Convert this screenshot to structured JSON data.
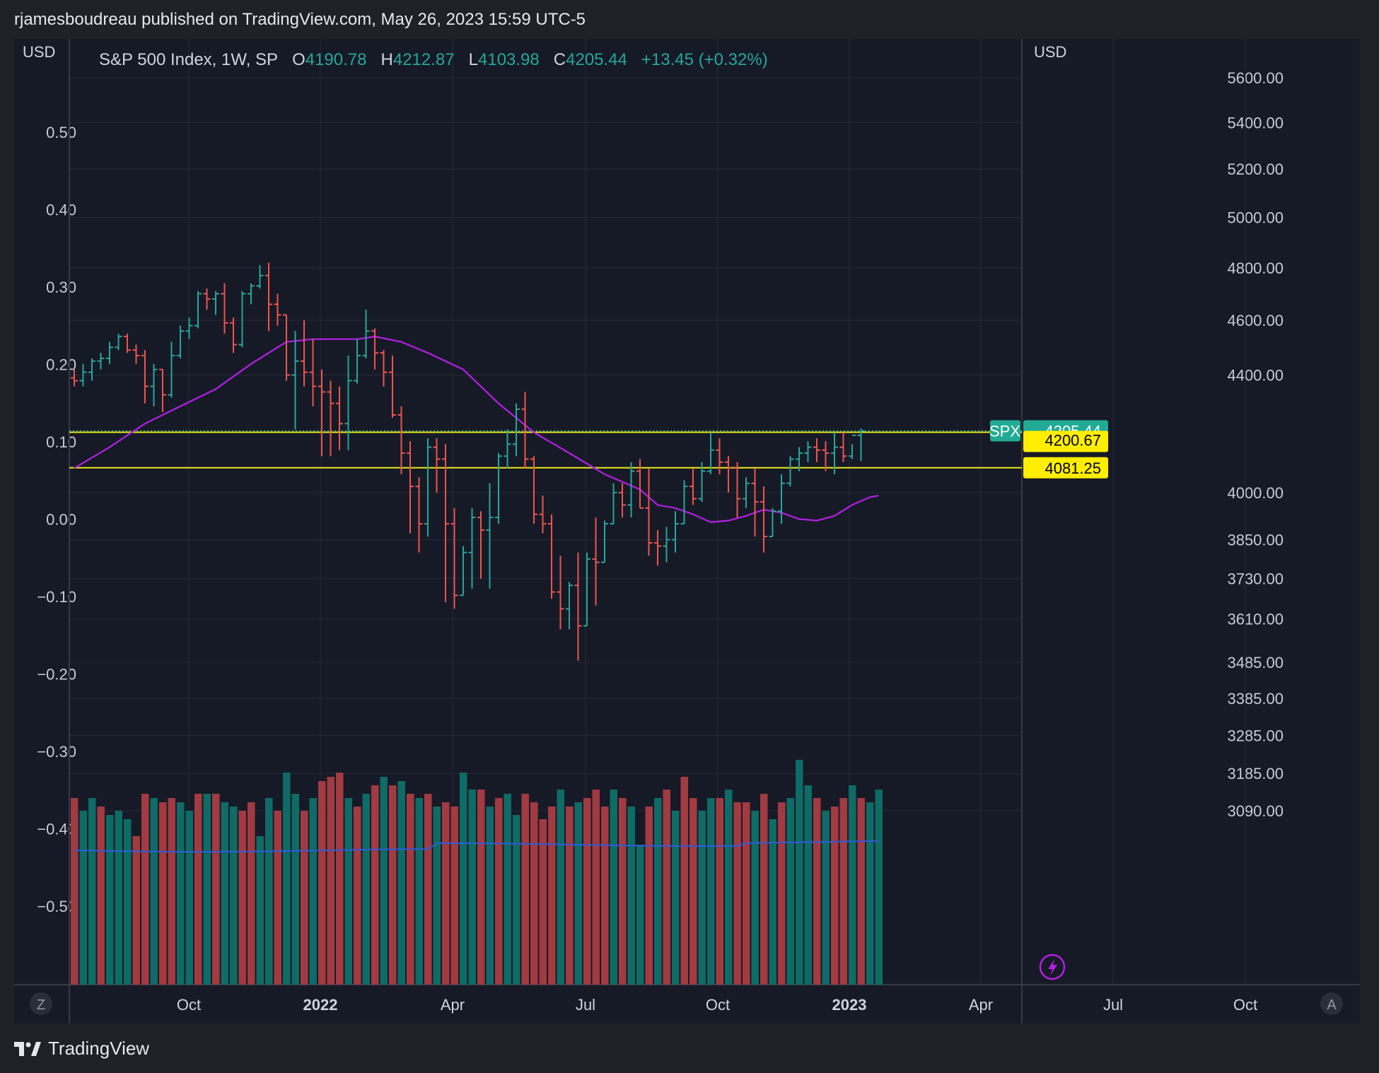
{
  "header": {
    "publish_line": "rjamesboudreau published on TradingView.com, May 26, 2023 15:59 UTC-5"
  },
  "legend": {
    "symbol": "S&P 500 Index, 1W, SP",
    "o_label": "O",
    "o_value": "4190.78",
    "h_label": "H",
    "h_value": "4212.87",
    "l_label": "L",
    "l_value": "4103.98",
    "c_label": "C",
    "c_value": "4205.44",
    "change": "+13.45 (+0.32%)"
  },
  "axes": {
    "left_currency": "USD",
    "right_currency": "USD",
    "left_ticks": [
      "0.50",
      "0.40",
      "0.30",
      "0.20",
      "0.10",
      "0.00",
      "−0.10",
      "−0.20",
      "−0.30",
      "−0.40",
      "−0.50"
    ],
    "right_ticks": [
      "5600.00",
      "5400.00",
      "5200.00",
      "5000.00",
      "4800.00",
      "4600.00",
      "4400.00",
      "4000.00",
      "3850.00",
      "3730.00",
      "3610.00",
      "3485.00",
      "3385.00",
      "3285.00",
      "3185.00",
      "3090.00"
    ],
    "x_ticks": [
      {
        "label": "Oct",
        "bold": false
      },
      {
        "label": "2022",
        "bold": true
      },
      {
        "label": "Apr",
        "bold": false
      },
      {
        "label": "Jul",
        "bold": false
      },
      {
        "label": "Oct",
        "bold": false
      },
      {
        "label": "2023",
        "bold": true
      },
      {
        "label": "Apr",
        "bold": false
      },
      {
        "label": "Jul",
        "bold": false
      },
      {
        "label": "Oct",
        "bold": false
      }
    ],
    "left_corner_button": "Z",
    "right_corner_button": "A"
  },
  "price_tags": {
    "symbol": "SPX",
    "last": "4205.44",
    "line1": "4200.67",
    "line2": "4081.25"
  },
  "colors": {
    "up": "#26a69a",
    "down": "#ef5350",
    "volume_up": "#0e6b66",
    "volume_down": "#a23a41",
    "ma": "#b51ee6",
    "volume_ma": "#2e5bd8",
    "hline": "#e8e81a",
    "tag_yellow": "#ffee00",
    "tag_teal": "#22ab94",
    "background": "#161a26",
    "grid": "#272b38"
  },
  "chart_data": {
    "type": "ohlc",
    "title": "S&P 500 Index, 1W, SP",
    "xlabel": "",
    "ylabel": "USD",
    "y_scale": "log",
    "ylim": [
      3090,
      5600
    ],
    "horizontal_lines": [
      4200.67,
      4081.25
    ],
    "ohlc_weeks": [
      [
        4390,
        4420,
        4360,
        4380
      ],
      [
        4380,
        4440,
        4360,
        4410
      ],
      [
        4410,
        4460,
        4380,
        4450
      ],
      [
        4450,
        4480,
        4420,
        4460
      ],
      [
        4460,
        4520,
        4440,
        4500
      ],
      [
        4500,
        4550,
        4490,
        4540
      ],
      [
        4540,
        4550,
        4480,
        4490
      ],
      [
        4490,
        4510,
        4440,
        4470
      ],
      [
        4470,
        4490,
        4300,
        4360
      ],
      [
        4360,
        4440,
        4290,
        4420
      ],
      [
        4420,
        4420,
        4270,
        4330
      ],
      [
        4330,
        4520,
        4320,
        4470
      ],
      [
        4470,
        4580,
        4460,
        4560
      ],
      [
        4560,
        4610,
        4530,
        4580
      ],
      [
        4580,
        4710,
        4570,
        4700
      ],
      [
        4700,
        4720,
        4640,
        4680
      ],
      [
        4680,
        4710,
        4620,
        4700
      ],
      [
        4700,
        4740,
        4550,
        4590
      ],
      [
        4590,
        4610,
        4480,
        4510
      ],
      [
        4510,
        4710,
        4500,
        4700
      ],
      [
        4700,
        4740,
        4660,
        4730
      ],
      [
        4730,
        4810,
        4720,
        4770
      ],
      [
        4770,
        4820,
        4560,
        4660
      ],
      [
        4660,
        4700,
        4580,
        4620
      ],
      [
        4620,
        4620,
        4380,
        4400
      ],
      [
        4400,
        4560,
        4210,
        4450
      ],
      [
        4450,
        4600,
        4360,
        4410
      ],
      [
        4410,
        4530,
        4290,
        4360
      ],
      [
        4360,
        4420,
        4120,
        4340
      ],
      [
        4340,
        4380,
        4120,
        4300
      ],
      [
        4300,
        4360,
        4140,
        4230
      ],
      [
        4230,
        4470,
        4140,
        4380
      ],
      [
        4380,
        4530,
        4370,
        4470
      ],
      [
        4470,
        4640,
        4460,
        4560
      ],
      [
        4560,
        4570,
        4420,
        4480
      ],
      [
        4480,
        4490,
        4360,
        4410
      ],
      [
        4410,
        4470,
        4250,
        4260
      ],
      [
        4260,
        4290,
        4060,
        4130
      ],
      [
        4130,
        4170,
        3870,
        4020
      ],
      [
        4020,
        4050,
        3810,
        3900
      ],
      [
        3900,
        4180,
        3860,
        4150
      ],
      [
        4150,
        4180,
        4000,
        4110
      ],
      [
        4110,
        4160,
        3660,
        3900
      ],
      [
        3900,
        3950,
        3640,
        3680
      ],
      [
        3680,
        3830,
        3680,
        3810
      ],
      [
        3810,
        3950,
        3700,
        3920
      ],
      [
        3920,
        3940,
        3730,
        3880
      ],
      [
        3880,
        4030,
        3700,
        3920
      ],
      [
        3920,
        4130,
        3900,
        4120
      ],
      [
        4120,
        4210,
        4080,
        4160
      ],
      [
        4160,
        4300,
        4120,
        4280
      ],
      [
        4280,
        4340,
        4080,
        4110
      ],
      [
        4110,
        4120,
        3900,
        3930
      ],
      [
        3930,
        3990,
        3870,
        3900
      ],
      [
        3900,
        3930,
        3670,
        3690
      ],
      [
        3690,
        3800,
        3580,
        3640
      ],
      [
        3640,
        3720,
        3580,
        3710
      ],
      [
        3710,
        3810,
        3490,
        3590
      ],
      [
        3590,
        3810,
        3590,
        3790
      ],
      [
        3790,
        3920,
        3650,
        3780
      ],
      [
        3780,
        3910,
        3780,
        3900
      ],
      [
        3900,
        4030,
        3900,
        4000
      ],
      [
        4000,
        4030,
        3920,
        3960
      ],
      [
        3960,
        4100,
        3920,
        4070
      ],
      [
        4070,
        4110,
        3950,
        3950
      ],
      [
        3950,
        4080,
        3800,
        3840
      ],
      [
        3840,
        3880,
        3770,
        3830
      ],
      [
        3830,
        3890,
        3780,
        3850
      ],
      [
        3850,
        3940,
        3810,
        3900
      ],
      [
        3900,
        4040,
        3900,
        4020
      ],
      [
        4020,
        4080,
        3960,
        3980
      ],
      [
        3980,
        4100,
        3970,
        4070
      ],
      [
        4070,
        4200,
        4060,
        4140
      ],
      [
        4140,
        4180,
        4060,
        4100
      ],
      [
        4100,
        4120,
        4000,
        4080
      ],
      [
        4080,
        4100,
        3920,
        3980
      ],
      [
        3980,
        4050,
        3950,
        4030
      ],
      [
        4030,
        4080,
        3860,
        3970
      ],
      [
        3970,
        4020,
        3810,
        3860
      ],
      [
        3860,
        3950,
        3860,
        3940
      ],
      [
        3940,
        4060,
        3900,
        4030
      ],
      [
        4030,
        4120,
        4020,
        4110
      ],
      [
        4110,
        4150,
        4070,
        4130
      ],
      [
        4130,
        4170,
        4100,
        4150
      ],
      [
        4150,
        4180,
        4100,
        4140
      ],
      [
        4140,
        4170,
        4070,
        4130
      ],
      [
        4130,
        4200,
        4060,
        4150
      ],
      [
        4150,
        4200,
        4100,
        4120
      ],
      [
        4120,
        4160,
        4110,
        4190
      ],
      [
        4190,
        4213,
        4104,
        4205
      ]
    ],
    "moving_average": [
      [
        0,
        4080
      ],
      [
        4,
        4150
      ],
      [
        8,
        4230
      ],
      [
        12,
        4290
      ],
      [
        16,
        4350
      ],
      [
        20,
        4440
      ],
      [
        22,
        4480
      ],
      [
        24,
        4520
      ],
      [
        27,
        4530
      ],
      [
        32,
        4530
      ],
      [
        34,
        4540
      ],
      [
        37,
        4520
      ],
      [
        40,
        4480
      ],
      [
        44,
        4420
      ],
      [
        48,
        4300
      ],
      [
        52,
        4200
      ],
      [
        56,
        4130
      ],
      [
        60,
        4060
      ],
      [
        64,
        4010
      ],
      [
        66,
        3960
      ],
      [
        68,
        3950
      ],
      [
        70,
        3930
      ],
      [
        72,
        3905
      ],
      [
        74,
        3910
      ],
      [
        76,
        3925
      ],
      [
        78,
        3945
      ],
      [
        80,
        3935
      ],
      [
        82,
        3915
      ],
      [
        84,
        3910
      ],
      [
        86,
        3925
      ],
      [
        88,
        3960
      ],
      [
        90,
        3985
      ],
      [
        91,
        3990
      ]
    ],
    "volume": [
      [
        0,
        "down",
        0.44
      ],
      [
        1,
        "up",
        0.41
      ],
      [
        2,
        "up",
        0.44
      ],
      [
        3,
        "down",
        0.42
      ],
      [
        4,
        "up",
        0.4
      ],
      [
        5,
        "up",
        0.41
      ],
      [
        6,
        "up",
        0.39
      ],
      [
        7,
        "down",
        0.35
      ],
      [
        8,
        "down",
        0.45
      ],
      [
        9,
        "up",
        0.44
      ],
      [
        10,
        "down",
        0.43
      ],
      [
        11,
        "down",
        0.44
      ],
      [
        12,
        "up",
        0.43
      ],
      [
        13,
        "up",
        0.41
      ],
      [
        14,
        "down",
        0.45
      ],
      [
        15,
        "up",
        0.45
      ],
      [
        16,
        "down",
        0.45
      ],
      [
        17,
        "up",
        0.43
      ],
      [
        18,
        "up",
        0.42
      ],
      [
        19,
        "down",
        0.41
      ],
      [
        20,
        "down",
        0.43
      ],
      [
        21,
        "up",
        0.35
      ],
      [
        22,
        "up",
        0.44
      ],
      [
        23,
        "down",
        0.41
      ],
      [
        24,
        "up",
        0.5
      ],
      [
        25,
        "up",
        0.45
      ],
      [
        26,
        "down",
        0.41
      ],
      [
        27,
        "up",
        0.44
      ],
      [
        28,
        "down",
        0.48
      ],
      [
        29,
        "down",
        0.49
      ],
      [
        30,
        "down",
        0.5
      ],
      [
        31,
        "up",
        0.44
      ],
      [
        32,
        "down",
        0.42
      ],
      [
        33,
        "up",
        0.45
      ],
      [
        34,
        "down",
        0.47
      ],
      [
        35,
        "up",
        0.49
      ],
      [
        36,
        "down",
        0.47
      ],
      [
        37,
        "up",
        0.48
      ],
      [
        38,
        "down",
        0.45
      ],
      [
        39,
        "up",
        0.44
      ],
      [
        40,
        "down",
        0.45
      ],
      [
        41,
        "up",
        0.42
      ],
      [
        42,
        "down",
        0.43
      ],
      [
        43,
        "down",
        0.42
      ],
      [
        44,
        "up",
        0.5
      ],
      [
        45,
        "up",
        0.46
      ],
      [
        46,
        "down",
        0.46
      ],
      [
        47,
        "up",
        0.42
      ],
      [
        48,
        "down",
        0.44
      ],
      [
        49,
        "up",
        0.45
      ],
      [
        50,
        "up",
        0.4
      ],
      [
        51,
        "down",
        0.45
      ],
      [
        52,
        "down",
        0.43
      ],
      [
        53,
        "down",
        0.39
      ],
      [
        54,
        "down",
        0.42
      ],
      [
        55,
        "up",
        0.46
      ],
      [
        56,
        "down",
        0.42
      ],
      [
        57,
        "up",
        0.43
      ],
      [
        58,
        "down",
        0.44
      ],
      [
        59,
        "down",
        0.46
      ],
      [
        60,
        "down",
        0.42
      ],
      [
        61,
        "up",
        0.46
      ],
      [
        62,
        "down",
        0.44
      ],
      [
        63,
        "up",
        0.42
      ],
      [
        64,
        "up",
        0.33
      ],
      [
        65,
        "down",
        0.42
      ],
      [
        66,
        "up",
        0.44
      ],
      [
        67,
        "down",
        0.46
      ],
      [
        68,
        "up",
        0.41
      ],
      [
        69,
        "down",
        0.49
      ],
      [
        70,
        "down",
        0.44
      ],
      [
        71,
        "up",
        0.41
      ],
      [
        72,
        "up",
        0.44
      ],
      [
        73,
        "down",
        0.44
      ],
      [
        74,
        "up",
        0.46
      ],
      [
        75,
        "down",
        0.43
      ],
      [
        76,
        "down",
        0.43
      ],
      [
        77,
        "up",
        0.41
      ],
      [
        78,
        "down",
        0.45
      ],
      [
        79,
        "up",
        0.39
      ],
      [
        80,
        "down",
        0.43
      ],
      [
        81,
        "up",
        0.44
      ],
      [
        82,
        "up",
        0.53
      ],
      [
        83,
        "up",
        0.47
      ],
      [
        84,
        "down",
        0.44
      ],
      [
        85,
        "up",
        0.41
      ],
      [
        86,
        "down",
        0.42
      ],
      [
        87,
        "down",
        0.44
      ],
      [
        88,
        "up",
        0.47
      ],
      [
        89,
        "down",
        0.44
      ],
      [
        90,
        "up",
        0.43
      ],
      [
        91,
        "up",
        0.46
      ]
    ]
  }
}
